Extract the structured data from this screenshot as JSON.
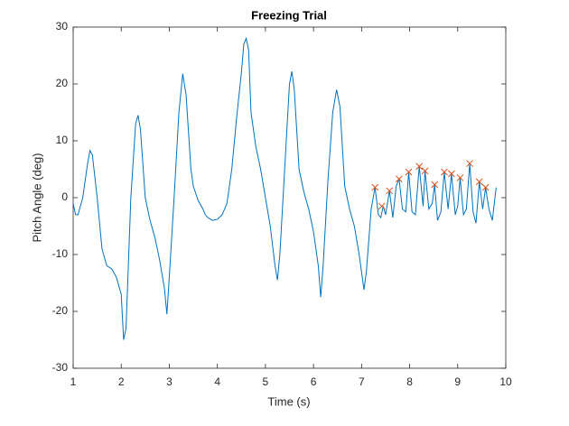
{
  "chart_data": {
    "type": "line",
    "title": "Freezing Trial",
    "x_label": "Time (s)",
    "y_label": "Pitch Angle (deg)",
    "xlim": [
      1,
      10
    ],
    "ylim": [
      -30,
      30
    ],
    "xticks": [
      1,
      2,
      3,
      4,
      5,
      6,
      7,
      8,
      9,
      10
    ],
    "yticks": [
      -30,
      -20,
      -10,
      0,
      10,
      20,
      30
    ],
    "grid": false,
    "series": [
      {
        "color": "#0072bd",
        "marker": "none",
        "x": [
          1.0,
          1.05,
          1.1,
          1.2,
          1.3,
          1.35,
          1.4,
          1.5,
          1.6,
          1.7,
          1.8,
          1.9,
          2.0,
          2.05,
          2.1,
          2.2,
          2.3,
          2.35,
          2.4,
          2.5,
          2.6,
          2.7,
          2.8,
          2.9,
          2.95,
          3.0,
          3.1,
          3.2,
          3.28,
          3.35,
          3.45,
          3.5,
          3.6,
          3.7,
          3.75,
          3.8,
          3.9,
          4.0,
          4.1,
          4.2,
          4.3,
          4.4,
          4.5,
          4.55,
          4.6,
          4.65,
          4.7,
          4.8,
          4.9,
          5.0,
          5.1,
          5.2,
          5.25,
          5.3,
          5.4,
          5.5,
          5.55,
          5.6,
          5.7,
          5.8,
          5.9,
          6.0,
          6.1,
          6.15,
          6.2,
          6.3,
          6.4,
          6.48,
          6.55,
          6.65,
          6.75,
          6.85,
          6.95,
          7.05,
          7.1,
          7.2,
          7.28,
          7.35,
          7.4,
          7.45,
          7.5,
          7.58,
          7.65,
          7.72,
          7.78,
          7.85,
          7.92,
          7.98,
          8.05,
          8.12,
          8.2,
          8.28,
          8.32,
          8.4,
          8.47,
          8.52,
          8.58,
          8.65,
          8.72,
          8.8,
          8.87,
          8.95,
          9.0,
          9.05,
          9.12,
          9.18,
          9.25,
          9.32,
          9.38,
          9.45,
          9.52,
          9.58,
          9.65,
          9.72,
          9.8
        ],
        "values": [
          -1,
          -3,
          -3,
          0,
          6,
          8.3,
          7.5,
          0,
          -9,
          -12,
          -12.5,
          -14,
          -17,
          -25,
          -23,
          0,
          13,
          14.5,
          12,
          0,
          -4,
          -7,
          -11,
          -16,
          -20.5,
          -14,
          0,
          15,
          21.8,
          18,
          5,
          2,
          -0.5,
          -2,
          -3,
          -3.5,
          -4,
          -3.8,
          -3,
          -1,
          5,
          14,
          22,
          27,
          28,
          26,
          15,
          9,
          5,
          0,
          -5,
          -12,
          -14.5,
          -10,
          5,
          20,
          22.2,
          19,
          5,
          1,
          -2,
          -6,
          -12,
          -17.5,
          -12,
          3,
          15,
          19,
          16,
          2,
          -2,
          -5,
          -10,
          -16.2,
          -13,
          -2,
          1.8,
          -3,
          -3.5,
          -1.5,
          -3,
          1.2,
          -3.5,
          2,
          3.3,
          -2,
          -2.5,
          4.5,
          -2.5,
          -3,
          5.5,
          -1.5,
          4.7,
          -2,
          -1,
          2.3,
          -4,
          -2.5,
          4.5,
          -2,
          4.2,
          -3,
          -1.5,
          3.5,
          -3,
          -2,
          6,
          -2.5,
          -4.5,
          2.8,
          -2,
          1.8,
          -2,
          -4,
          1.8
        ]
      },
      {
        "color": "#d95319",
        "marker": "x",
        "x": [
          7.28,
          7.42,
          7.58,
          7.78,
          7.98,
          8.2,
          8.32,
          8.52,
          8.72,
          8.87,
          9.05,
          9.25,
          9.45,
          9.58
        ],
        "values": [
          1.8,
          -1.5,
          1.2,
          3.3,
          4.5,
          5.5,
          4.7,
          2.3,
          4.5,
          4.2,
          3.5,
          6,
          2.8,
          1.8
        ]
      }
    ]
  }
}
